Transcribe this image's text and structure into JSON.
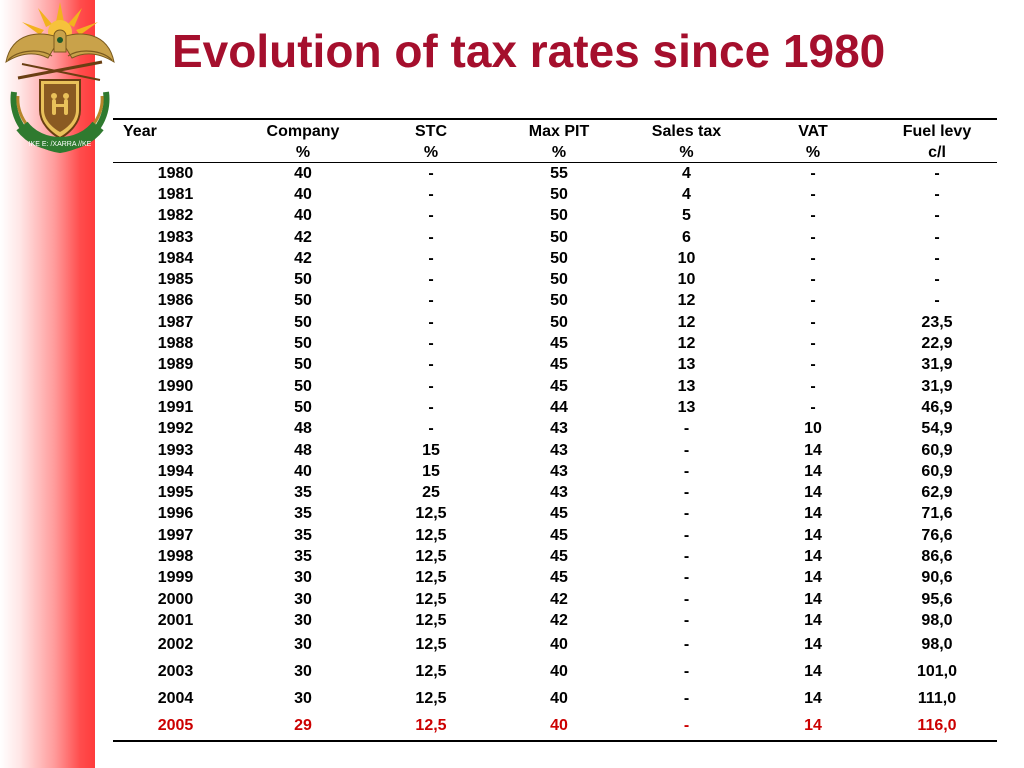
{
  "slide": {
    "title": "Evolution of tax rates since 1980",
    "accent_color": "#a50f2d",
    "highlight_color": "#cc0000",
    "emblem_icon": "coat-of-arms-icon",
    "emblem_motto": "!KE E: /XARRA //KE"
  },
  "table": {
    "headers": [
      {
        "line1": "Year",
        "line2": ""
      },
      {
        "line1": "Company",
        "line2": "%"
      },
      {
        "line1": "STC",
        "line2": "%"
      },
      {
        "line1": "Max PIT",
        "line2": "%"
      },
      {
        "line1": "Sales tax",
        "line2": "%"
      },
      {
        "line1": "VAT",
        "line2": "%"
      },
      {
        "line1": "Fuel levy",
        "line2": "c/l"
      }
    ],
    "rows": [
      [
        "1980",
        "40",
        "-",
        "55",
        "4",
        "-",
        "-"
      ],
      [
        "1981",
        "40",
        "-",
        "50",
        "4",
        "-",
        "-"
      ],
      [
        "1982",
        "40",
        "-",
        "50",
        "5",
        "-",
        "-"
      ],
      [
        "1983",
        "42",
        "-",
        "50",
        "6",
        "-",
        "-"
      ],
      [
        "1984",
        "42",
        "-",
        "50",
        "10",
        "-",
        "-"
      ],
      [
        "1985",
        "50",
        "-",
        "50",
        "10",
        "-",
        "-"
      ],
      [
        "1986",
        "50",
        "-",
        "50",
        "12",
        "-",
        "-"
      ],
      [
        "1987",
        "50",
        "-",
        "50",
        "12",
        "-",
        "23,5"
      ],
      [
        "1988",
        "50",
        "-",
        "45",
        "12",
        "-",
        "22,9"
      ],
      [
        "1989",
        "50",
        "-",
        "45",
        "13",
        "-",
        "31,9"
      ],
      [
        "1990",
        "50",
        "-",
        "45",
        "13",
        "-",
        "31,9"
      ],
      [
        "1991",
        "50",
        "-",
        "44",
        "13",
        "-",
        "46,9"
      ],
      [
        "1992",
        "48",
        "-",
        "43",
        "-",
        "10",
        "54,9"
      ],
      [
        "1993",
        "48",
        "15",
        "43",
        "-",
        "14",
        "60,9"
      ],
      [
        "1994",
        "40",
        "15",
        "43",
        "-",
        "14",
        "60,9"
      ],
      [
        "1995",
        "35",
        "25",
        "43",
        "-",
        "14",
        "62,9"
      ],
      [
        "1996",
        "35",
        "12,5",
        "45",
        "-",
        "14",
        "71,6"
      ],
      [
        "1997",
        "35",
        "12,5",
        "45",
        "-",
        "14",
        "76,6"
      ],
      [
        "1998",
        "35",
        "12,5",
        "45",
        "-",
        "14",
        "86,6"
      ],
      [
        "1999",
        "30",
        "12,5",
        "45",
        "-",
        "14",
        "90,6"
      ],
      [
        "2000",
        "30",
        "12,5",
        "42",
        "-",
        "14",
        "95,6"
      ],
      [
        "2001",
        "30",
        "12,5",
        "42",
        "-",
        "14",
        "98,0"
      ],
      [
        "2002",
        "30",
        "12,5",
        "40",
        "-",
        "14",
        "98,0"
      ],
      [
        "2003",
        "30",
        "12,5",
        "40",
        "-",
        "14",
        "101,0"
      ],
      [
        "2004",
        "30",
        "12,5",
        "40",
        "-",
        "14",
        "111,0"
      ],
      [
        "2005",
        "29",
        "12,5",
        "40",
        "-",
        "14",
        "116,0"
      ]
    ],
    "highlighted_row": "2005"
  }
}
